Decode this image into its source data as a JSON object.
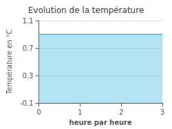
{
  "chart_data": {
    "type": "area",
    "title": "Evolution de la température",
    "xlabel": "heure par heure",
    "ylabel": "Température en °C",
    "x": [
      0,
      3
    ],
    "values": [
      0.9,
      0.9
    ],
    "color": "#44bbdd",
    "xlim": [
      0,
      3
    ],
    "ylim": [
      -0.1,
      1.1
    ],
    "xticks": [
      0,
      1,
      2,
      3
    ],
    "yticks": [
      -0.1,
      0.3,
      0.7,
      1.1
    ],
    "grid": true
  }
}
